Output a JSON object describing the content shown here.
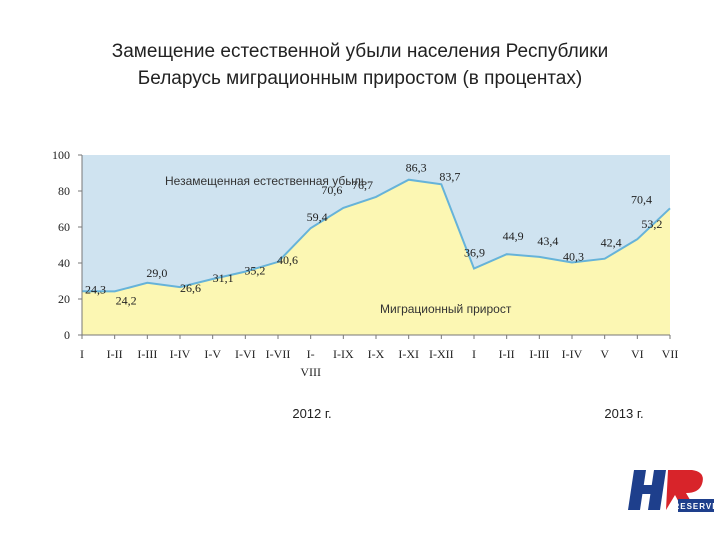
{
  "slide": {
    "title_line1": "Замещение естественной убыли населения Республики",
    "title_line2": "Беларусь миграционным приростом (в процентах)",
    "logo_text": "HR RESERVE"
  },
  "colors": {
    "unreplaced": "#cfe3f0",
    "migration": "#fcf7b3",
    "line": "#66b3d9"
  },
  "chart_data": {
    "type": "area",
    "title": "",
    "xlabel": "",
    "ylabel": "",
    "ylim": [
      0,
      100
    ],
    "y_ticks": [
      0,
      20,
      40,
      60,
      80,
      100
    ],
    "grid": false,
    "categories": [
      {
        "label": "I",
        "year": 2012
      },
      {
        "label": "I-II",
        "year": 2012
      },
      {
        "label": "I-III",
        "year": 2012
      },
      {
        "label": "I-IV",
        "year": 2012
      },
      {
        "label": "I-V",
        "year": 2012
      },
      {
        "label": "I-VI",
        "year": 2012
      },
      {
        "label": "I-VII",
        "year": 2012
      },
      {
        "label": "I-VIII",
        "year": 2012
      },
      {
        "label": "I-IX",
        "year": 2012
      },
      {
        "label": "I-X",
        "year": 2012
      },
      {
        "label": "I-XI",
        "year": 2012
      },
      {
        "label": "I-XII",
        "year": 2012
      },
      {
        "label": "I",
        "year": 2013
      },
      {
        "label": "I-II",
        "year": 2013
      },
      {
        "label": "I-III",
        "year": 2013
      },
      {
        "label": "I-IV",
        "year": 2013
      },
      {
        "label": "V",
        "year": 2013
      },
      {
        "label": "VI",
        "year": 2013
      },
      {
        "label": "VII",
        "year": 2013
      }
    ],
    "values": [
      24.3,
      24.2,
      29.0,
      26.6,
      31.1,
      35.2,
      40.6,
      59.4,
      70.6,
      76.7,
      86.3,
      83.7,
      36.9,
      44.9,
      43.4,
      40.3,
      42.4,
      53.2,
      70.4
    ],
    "data_labels": [
      "24,3",
      "24,2",
      "29,0",
      "26,6",
      "31,1",
      "35,2",
      "40,6",
      "59,4",
      "70,6",
      "76,7",
      "86,3",
      "83,7",
      "36,9",
      "44,9",
      "43,4",
      "40,3",
      "42,4",
      "53,2",
      "70,4"
    ],
    "annotations": {
      "upper": "Незамещенная естественная убыль",
      "lower": "Миграционный прирост"
    },
    "year_labels": [
      "2012 г.",
      "2013 г."
    ]
  }
}
